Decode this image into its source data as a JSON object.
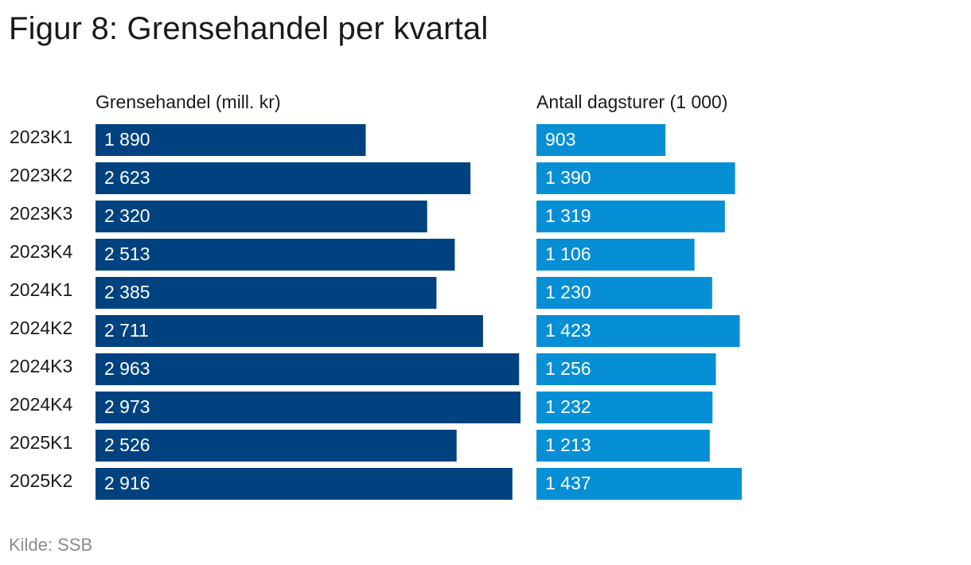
{
  "title": "Figur 8: Grensehandel per kvartal",
  "source": "Kilde: SSB",
  "colors": {
    "series_1": "#00427f",
    "series_2": "#078fd5",
    "bar_text": "#ffffff"
  },
  "chart_data": [
    {
      "type": "bar",
      "orientation": "horizontal",
      "title": "Grensehandel (mill. kr)",
      "categories": [
        "2023K1",
        "2023K2",
        "2023K3",
        "2023K4",
        "2024K1",
        "2024K2",
        "2024K3",
        "2024K4",
        "2025K1",
        "2025K2"
      ],
      "values": [
        1890,
        2623,
        2320,
        2513,
        2385,
        2711,
        2963,
        2973,
        2526,
        2916
      ],
      "value_labels": [
        "1 890",
        "2 623",
        "2 320",
        "2 513",
        "2 385",
        "2 711",
        "2 963",
        "2 973",
        "2 526",
        "2 916"
      ],
      "xlim": [
        0,
        2973
      ],
      "grid": false
    },
    {
      "type": "bar",
      "orientation": "horizontal",
      "title": "Antall dagsturer (1 000)",
      "categories": [
        "2023K1",
        "2023K2",
        "2023K3",
        "2023K4",
        "2024K1",
        "2024K2",
        "2024K3",
        "2024K4",
        "2025K1",
        "2025K2"
      ],
      "values": [
        903,
        1390,
        1319,
        1106,
        1230,
        1423,
        1256,
        1232,
        1213,
        1437
      ],
      "value_labels": [
        "903",
        "1 390",
        "1 319",
        "1 106",
        "1 230",
        "1 423",
        "1 256",
        "1 232",
        "1 213",
        "1 437"
      ],
      "xlim": [
        0,
        1437
      ],
      "grid": false
    }
  ]
}
